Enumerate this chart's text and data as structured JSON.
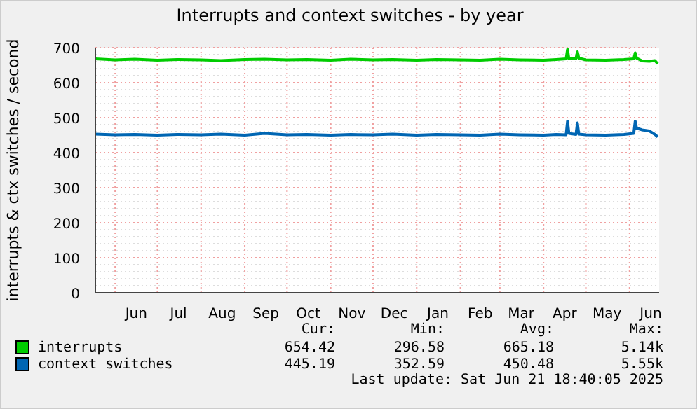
{
  "chart_data": {
    "type": "line",
    "title": "Interrupts and context switches - by year",
    "ylabel": "interrupts & ctx switches / second",
    "x": [
      "2024-05-18",
      "2024-06-01",
      "2024-06-15",
      "2024-07-01",
      "2024-07-15",
      "2024-08-01",
      "2024-08-15",
      "2024-09-01",
      "2024-09-15",
      "2024-10-01",
      "2024-10-15",
      "2024-11-01",
      "2024-11-15",
      "2024-12-01",
      "2024-12-15",
      "2025-01-01",
      "2025-01-15",
      "2025-02-01",
      "2025-02-15",
      "2025-03-01",
      "2025-03-15",
      "2025-04-01",
      "2025-04-10",
      "2025-04-17",
      "2025-04-18",
      "2025-04-19",
      "2025-04-24",
      "2025-04-25",
      "2025-04-26",
      "2025-05-01",
      "2025-05-15",
      "2025-05-28",
      "2025-06-04",
      "2025-06-05",
      "2025-06-06",
      "2025-06-10",
      "2025-06-15",
      "2025-06-19",
      "2025-06-21"
    ],
    "series": [
      {
        "name": "interrupts",
        "color": "#00cc00",
        "values": [
          668,
          665,
          667,
          664,
          666,
          665,
          663,
          666,
          667,
          665,
          666,
          664,
          667,
          665,
          666,
          664,
          666,
          665,
          664,
          667,
          665,
          664,
          666,
          668,
          695,
          668,
          669,
          688,
          670,
          665,
          664,
          666,
          668,
          685,
          670,
          662,
          661,
          663,
          654
        ]
      },
      {
        "name": "context switches",
        "color": "#0066b3",
        "values": [
          453,
          451,
          452,
          450,
          452,
          451,
          453,
          450,
          455,
          451,
          452,
          450,
          452,
          451,
          453,
          450,
          452,
          451,
          450,
          453,
          451,
          450,
          452,
          451,
          490,
          455,
          452,
          485,
          453,
          451,
          450,
          452,
          455,
          490,
          470,
          465,
          462,
          452,
          445
        ]
      }
    ],
    "xlim": [
      "2024-05-18",
      "2025-06-22"
    ],
    "xticks": [
      {
        "value": "2024-06-01",
        "label": null
      },
      {
        "value": "2024-06-16",
        "label": "Jun"
      },
      {
        "value": "2024-07-01",
        "label": null
      },
      {
        "value": "2024-07-16",
        "label": "Jul"
      },
      {
        "value": "2024-08-01",
        "label": null
      },
      {
        "value": "2024-08-16",
        "label": "Aug"
      },
      {
        "value": "2024-09-01",
        "label": null
      },
      {
        "value": "2024-09-16",
        "label": "Sep"
      },
      {
        "value": "2024-10-01",
        "label": null
      },
      {
        "value": "2024-10-16",
        "label": "Oct"
      },
      {
        "value": "2024-11-01",
        "label": null
      },
      {
        "value": "2024-11-16",
        "label": "Nov"
      },
      {
        "value": "2024-12-01",
        "label": null
      },
      {
        "value": "2024-12-16",
        "label": "Dec"
      },
      {
        "value": "2025-01-01",
        "label": null
      },
      {
        "value": "2025-01-16",
        "label": "Jan"
      },
      {
        "value": "2025-02-01",
        "label": null
      },
      {
        "value": "2025-02-15",
        "label": "Feb"
      },
      {
        "value": "2025-03-01",
        "label": null
      },
      {
        "value": "2025-03-16",
        "label": "Mar"
      },
      {
        "value": "2025-04-01",
        "label": null
      },
      {
        "value": "2025-04-16",
        "label": "Apr"
      },
      {
        "value": "2025-05-01",
        "label": null
      },
      {
        "value": "2025-05-16",
        "label": "May"
      },
      {
        "value": "2025-06-01",
        "label": null
      },
      {
        "value": "2025-06-16",
        "label": "Jun"
      }
    ],
    "ylim": [
      0,
      700
    ],
    "yticks": [
      0,
      {
        "value": 20,
        "label": null
      },
      {
        "value": 40,
        "label": null
      },
      {
        "value": 60,
        "label": null
      },
      {
        "value": 80,
        "label": null
      },
      100,
      {
        "value": 120,
        "label": null
      },
      {
        "value": 140,
        "label": null
      },
      {
        "value": 160,
        "label": null
      },
      {
        "value": 180,
        "label": null
      },
      200,
      {
        "value": 220,
        "label": null
      },
      {
        "value": 240,
        "label": null
      },
      {
        "value": 260,
        "label": null
      },
      {
        "value": 280,
        "label": null
      },
      300,
      {
        "value": 320,
        "label": null
      },
      {
        "value": 340,
        "label": null
      },
      {
        "value": 360,
        "label": null
      },
      {
        "value": 380,
        "label": null
      },
      400,
      {
        "value": 420,
        "label": null
      },
      {
        "value": 440,
        "label": null
      },
      {
        "value": 460,
        "label": null
      },
      {
        "value": 480,
        "label": null
      },
      500,
      {
        "value": 520,
        "label": null
      },
      {
        "value": 540,
        "label": null
      },
      {
        "value": 560,
        "label": null
      },
      {
        "value": 580,
        "label": null
      },
      600,
      {
        "value": 620,
        "label": null
      },
      {
        "value": 640,
        "label": null
      },
      {
        "value": 660,
        "label": null
      },
      {
        "value": 680,
        "label": null
      },
      700
    ],
    "grid": true,
    "legend": "bottom",
    "annotations": [
      "Cur:",
      "Min:",
      "Avg:",
      "Max:",
      "654.42",
      "296.58",
      "665.18",
      "5.14k",
      "445.19",
      "352.59",
      "450.48",
      "5.55k",
      "Last update: Sat Jun 21 18:40:05 2025"
    ]
  }
}
